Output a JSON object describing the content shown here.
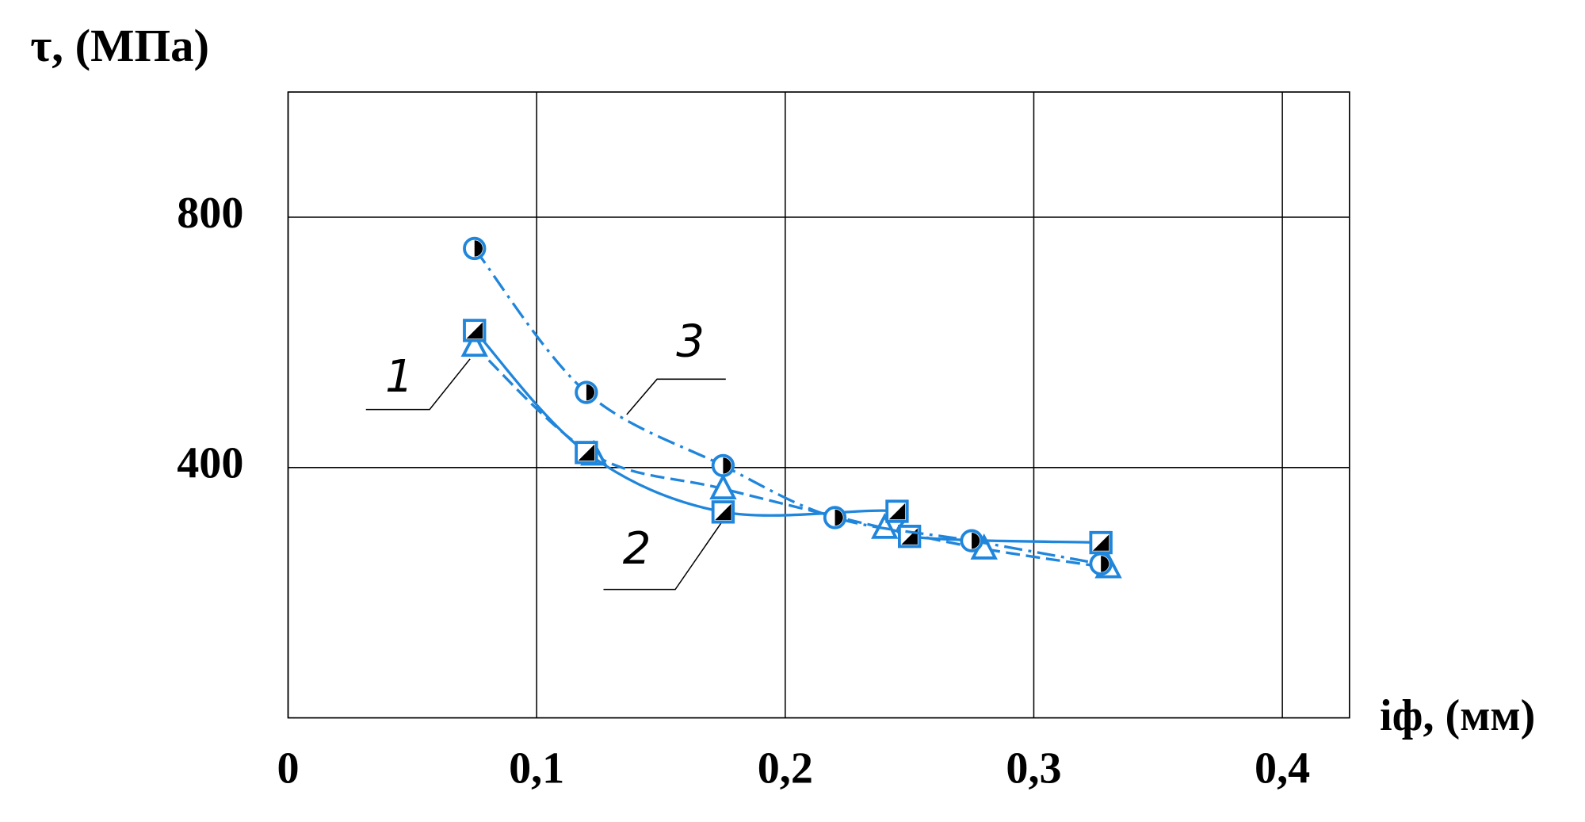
{
  "chart_data": {
    "type": "scatter",
    "y_label": "τ, (МПа)",
    "x_label": "iф, (мм)",
    "xlim": [
      0,
      0.427
    ],
    "ylim": [
      0,
      1000
    ],
    "xticks": [
      {
        "value": 0,
        "label": "0"
      },
      {
        "value": 0.1,
        "label": "0,1"
      },
      {
        "value": 0.2,
        "label": "0,2"
      },
      {
        "value": 0.3,
        "label": "0,3"
      },
      {
        "value": 0.4,
        "label": "0,4"
      }
    ],
    "yticks": [
      400,
      800
    ],
    "grid": true,
    "series": [
      {
        "name": "1",
        "color": "#1f86dc",
        "marker": "triangle",
        "line_style": "dashed",
        "x": [
          0.075,
          0.123,
          0.175,
          0.24,
          0.28,
          0.33
        ],
        "values": [
          594,
          420,
          366,
          303,
          270,
          240
        ]
      },
      {
        "name": "2",
        "color": "#1f86dc",
        "marker": "square",
        "line_style": "solid",
        "x": [
          0.075,
          0.12,
          0.175,
          0.245,
          0.25,
          0.327
        ],
        "values": [
          619,
          424,
          329,
          330,
          290,
          280
        ]
      },
      {
        "name": "3",
        "color": "#1f86dc",
        "marker": "circle",
        "line_style": "dashdot",
        "x": [
          0.075,
          0.12,
          0.175,
          0.22,
          0.275,
          0.327
        ],
        "values": [
          750,
          520,
          403,
          320,
          283,
          246
        ]
      }
    ]
  }
}
